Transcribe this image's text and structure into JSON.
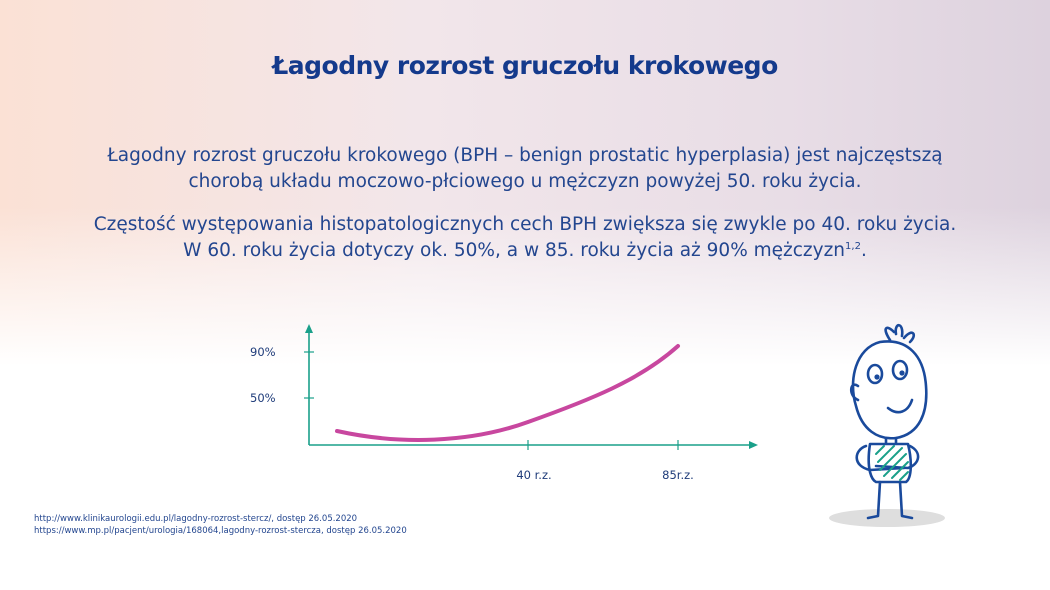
{
  "title": "Łagodny rozrost gruczołu krokowego",
  "paragraph1": {
    "line1": "Łagodny rozrost gruczołu krokowego (BPH – benign prostatic hyperplasia) jest najczęstszą",
    "line2": "chorobą układu moczowo-płciowego u mężczyzn powyżej 50. roku życia."
  },
  "paragraph2": {
    "line1": "Częstość występowania histopatologicznych cech BPH zwiększa się zwykle po 40. roku życia.",
    "line2": "W 60. roku życia dotyczy ok. 50%, a w 85. roku życia aż 90% mężczyzn",
    "refs": "1,2"
  },
  "chart": {
    "y_ticks": [
      "90%",
      "50%"
    ],
    "x_ticks": [
      "40 r.z.",
      "85r.z."
    ],
    "axis_color": "#1aa08a",
    "curve_color": "#c8479f"
  },
  "footnotes": [
    "http://www.klinikaurologii.edu.pl/lagodny-rozrost-stercz/,  dostęp  26.05.2020",
    "https://www.mp.pl/pacjent/urologia/168064,lagodny-rozrost-stercza,  dostęp  26.05.2020"
  ],
  "colors": {
    "title": "#143a8c",
    "text": "#23468f"
  },
  "illustration": {
    "icon": "cartoon-man-icon"
  }
}
